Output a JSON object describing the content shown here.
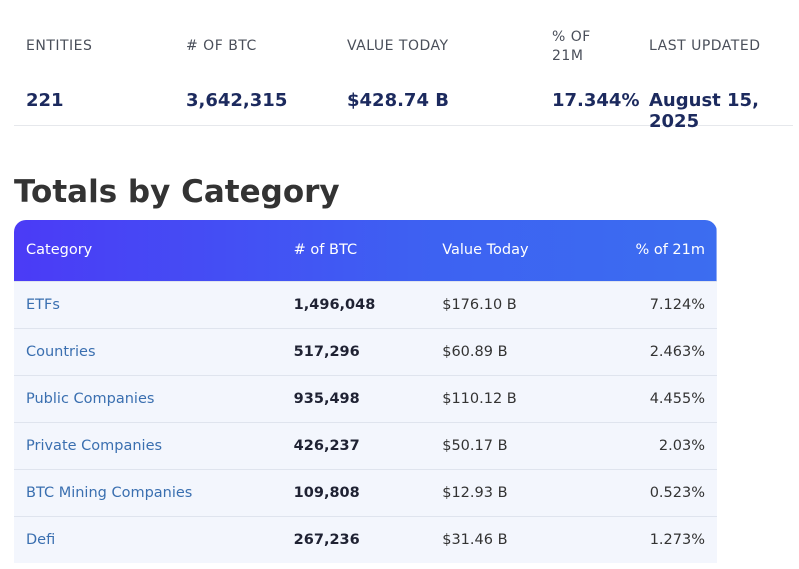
{
  "summary": {
    "headers": [
      "ENTITIES",
      "# OF BTC",
      "VALUE TODAY",
      "% OF 21M",
      "LAST UPDATED"
    ],
    "values": [
      "221",
      "3,642,315",
      "$428.74 B",
      "17.344%",
      "August 15, 2025"
    ]
  },
  "section_title": "Totals by Category",
  "table": {
    "headers": [
      "Category",
      "# of BTC",
      "Value Today",
      "% of 21m"
    ],
    "rows": [
      [
        "ETFs",
        "1,496,048",
        "$176.10 B",
        "7.124%"
      ],
      [
        "Countries",
        "517,296",
        "$60.89 B",
        "2.463%"
      ],
      [
        "Public Companies",
        "935,498",
        "$110.12 B",
        "4.455%"
      ],
      [
        "Private Companies",
        "426,237",
        "$50.17 B",
        "2.03%"
      ],
      [
        "BTC Mining Companies",
        "109,808",
        "$12.93 B",
        "0.523%"
      ],
      [
        "Defi",
        "267,236",
        "$31.46 B",
        "1.273%"
      ]
    ]
  }
}
